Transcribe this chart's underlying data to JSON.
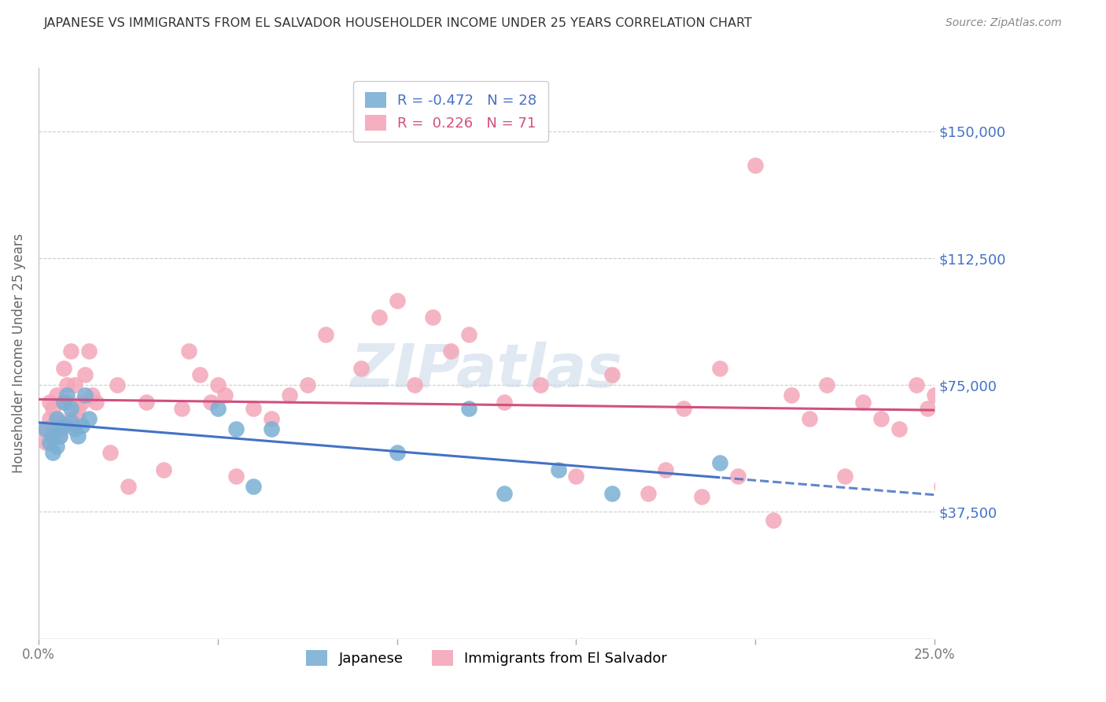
{
  "title": "JAPANESE VS IMMIGRANTS FROM EL SALVADOR HOUSEHOLDER INCOME UNDER 25 YEARS CORRELATION CHART",
  "source": "Source: ZipAtlas.com",
  "ylabel": "Householder Income Under 25 years",
  "x_min": 0.0,
  "x_max": 0.25,
  "y_min": 0,
  "y_max": 168750,
  "yticks": [
    0,
    37500,
    75000,
    112500,
    150000
  ],
  "ytick_labels": [
    "",
    "$37,500",
    "$75,000",
    "$112,500",
    "$150,000"
  ],
  "legend_entry1": "R = -0.472   N = 28",
  "legend_entry2": "R =  0.226   N = 71",
  "series1_label": "Japanese",
  "series2_label": "Immigrants from El Salvador",
  "series1_color": "#7bafd4",
  "series2_color": "#f4a7b9",
  "series1_line_color": "#4472c4",
  "series2_line_color": "#d05080",
  "background_color": "#ffffff",
  "grid_color": "#cccccc",
  "title_color": "#333333",
  "right_label_color": "#4472c4",
  "watermark": "ZIPatlas",
  "series1_x": [
    0.002,
    0.003,
    0.004,
    0.004,
    0.005,
    0.005,
    0.006,
    0.006,
    0.007,
    0.007,
    0.008,
    0.009,
    0.009,
    0.01,
    0.011,
    0.012,
    0.013,
    0.014,
    0.05,
    0.055,
    0.06,
    0.065,
    0.1,
    0.12,
    0.13,
    0.145,
    0.16,
    0.19
  ],
  "series1_y": [
    62000,
    58000,
    55000,
    60000,
    57000,
    65000,
    62000,
    60000,
    63000,
    70000,
    72000,
    68000,
    64000,
    62000,
    60000,
    63000,
    72000,
    65000,
    68000,
    62000,
    45000,
    62000,
    55000,
    68000,
    43000,
    50000,
    43000,
    52000
  ],
  "series2_x": [
    0.001,
    0.002,
    0.003,
    0.003,
    0.004,
    0.004,
    0.005,
    0.005,
    0.006,
    0.006,
    0.007,
    0.008,
    0.008,
    0.009,
    0.009,
    0.01,
    0.01,
    0.011,
    0.011,
    0.012,
    0.013,
    0.014,
    0.015,
    0.016,
    0.02,
    0.022,
    0.025,
    0.03,
    0.035,
    0.04,
    0.042,
    0.045,
    0.048,
    0.05,
    0.052,
    0.055,
    0.06,
    0.065,
    0.07,
    0.075,
    0.08,
    0.09,
    0.095,
    0.1,
    0.105,
    0.11,
    0.115,
    0.12,
    0.13,
    0.14,
    0.15,
    0.16,
    0.17,
    0.175,
    0.18,
    0.185,
    0.19,
    0.195,
    0.2,
    0.205,
    0.21,
    0.215,
    0.22,
    0.225,
    0.23,
    0.235,
    0.24,
    0.245,
    0.248,
    0.25,
    0.252
  ],
  "series2_y": [
    62000,
    58000,
    65000,
    70000,
    63000,
    68000,
    72000,
    65000,
    60000,
    64000,
    80000,
    70000,
    75000,
    85000,
    65000,
    63000,
    75000,
    65000,
    68000,
    70000,
    78000,
    85000,
    72000,
    70000,
    55000,
    75000,
    45000,
    70000,
    50000,
    68000,
    85000,
    78000,
    70000,
    75000,
    72000,
    48000,
    68000,
    65000,
    72000,
    75000,
    90000,
    80000,
    95000,
    100000,
    75000,
    95000,
    85000,
    90000,
    70000,
    75000,
    48000,
    78000,
    43000,
    50000,
    68000,
    42000,
    80000,
    48000,
    140000,
    35000,
    72000,
    65000,
    75000,
    48000,
    70000,
    65000,
    62000,
    75000,
    68000,
    72000,
    45000
  ]
}
